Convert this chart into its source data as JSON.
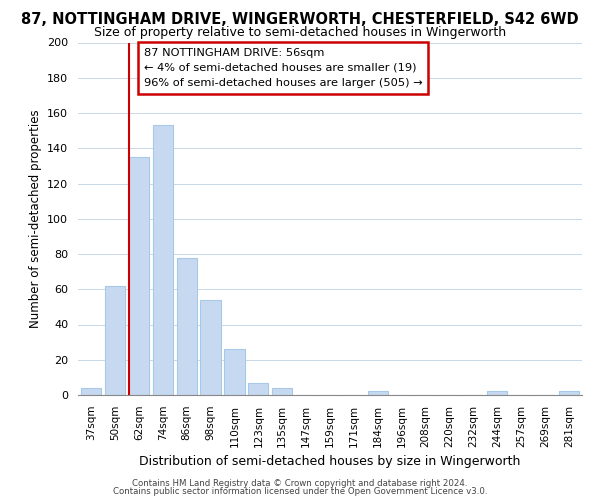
{
  "title": "87, NOTTINGHAM DRIVE, WINGERWORTH, CHESTERFIELD, S42 6WD",
  "subtitle": "Size of property relative to semi-detached houses in Wingerworth",
  "xlabel": "Distribution of semi-detached houses by size in Wingerworth",
  "ylabel": "Number of semi-detached properties",
  "categories": [
    "37sqm",
    "50sqm",
    "62sqm",
    "74sqm",
    "86sqm",
    "98sqm",
    "110sqm",
    "123sqm",
    "135sqm",
    "147sqm",
    "159sqm",
    "171sqm",
    "184sqm",
    "196sqm",
    "208sqm",
    "220sqm",
    "232sqm",
    "244sqm",
    "257sqm",
    "269sqm",
    "281sqm"
  ],
  "values": [
    4,
    62,
    135,
    153,
    78,
    54,
    26,
    7,
    4,
    0,
    0,
    0,
    2,
    0,
    0,
    0,
    0,
    2,
    0,
    0,
    2
  ],
  "bar_color": "#c6d9f0",
  "bar_edge_color": "#a8c8e8",
  "marker_label": "87 NOTTINGHAM DRIVE: 56sqm",
  "smaller_pct": "4% of semi-detached houses are smaller (19)",
  "larger_pct": "96% of semi-detached houses are larger (505)",
  "annotation_box_color": "#ffffff",
  "annotation_box_edge": "#cc0000",
  "marker_line_color": "#cc0000",
  "ylim": [
    0,
    200
  ],
  "yticks": [
    0,
    20,
    40,
    60,
    80,
    100,
    120,
    140,
    160,
    180,
    200
  ],
  "footer1": "Contains HM Land Registry data © Crown copyright and database right 2024.",
  "footer2": "Contains public sector information licensed under the Open Government Licence v3.0.",
  "title_fontsize": 10.5,
  "subtitle_fontsize": 9
}
